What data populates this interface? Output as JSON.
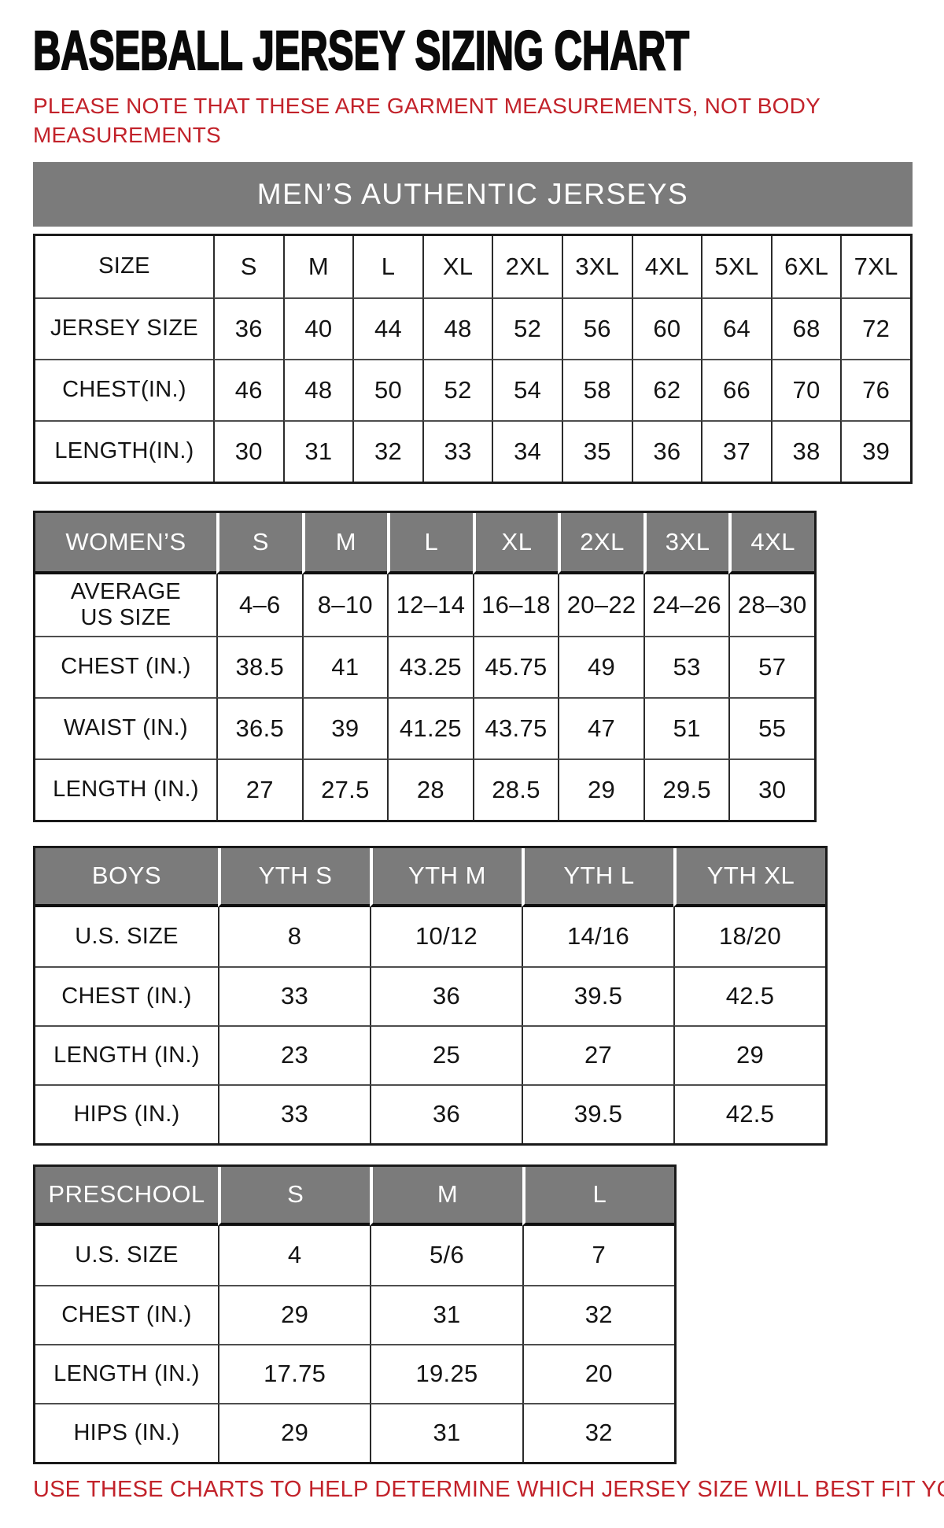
{
  "page": {
    "title": "BASEBALL JERSEY SIZING CHART",
    "note": "PLEASE NOTE THAT THESE ARE GARMENT MEASUREMENTS, NOT BODY MEASUREMENTS",
    "footer": "USE THESE CHARTS TO HELP DETERMINE WHICH JERSEY SIZE WILL BEST FIT YOU."
  },
  "colors": {
    "header_gray": "#7b7b7b",
    "note_red": "#c2222a",
    "border_dark": "#1a1a1a",
    "header_text": "#ffffff",
    "body_text": "#141414"
  },
  "tables": [
    {
      "name": "mens",
      "banner": "MEN’S AUTHENTIC JERSEYS",
      "rows": [
        {
          "label": "SIZE",
          "cells": [
            "S",
            "M",
            "L",
            "XL",
            "2XL",
            "3XL",
            "4XL",
            "5XL",
            "6XL",
            "7XL"
          ]
        },
        {
          "label": "JERSEY SIZE",
          "cells": [
            "36",
            "40",
            "44",
            "48",
            "52",
            "56",
            "60",
            "64",
            "68",
            "72"
          ]
        },
        {
          "label": "CHEST(IN.)",
          "cells": [
            "46",
            "48",
            "50",
            "52",
            "54",
            "58",
            "62",
            "66",
            "70",
            "76"
          ]
        },
        {
          "label": "LENGTH(IN.)",
          "cells": [
            "30",
            "31",
            "32",
            "33",
            "34",
            "35",
            "36",
            "37",
            "38",
            "39"
          ]
        }
      ]
    },
    {
      "name": "womens",
      "header": {
        "label": "WOMEN’S",
        "cells": [
          "S",
          "M",
          "L",
          "XL",
          "2XL",
          "3XL",
          "4XL"
        ]
      },
      "rows": [
        {
          "label": "AVERAGE\nUS SIZE",
          "cells": [
            "4–6",
            "8–10",
            "12–14",
            "16–18",
            "20–22",
            "24–26",
            "28–30"
          ]
        },
        {
          "label": "CHEST (IN.)",
          "cells": [
            "38.5",
            "41",
            "43.25",
            "45.75",
            "49",
            "53",
            "57"
          ]
        },
        {
          "label": "WAIST (IN.)",
          "cells": [
            "36.5",
            "39",
            "41.25",
            "43.75",
            "47",
            "51",
            "55"
          ]
        },
        {
          "label": "LENGTH (IN.)",
          "cells": [
            "27",
            "27.5",
            "28",
            "28.5",
            "29",
            "29.5",
            "30"
          ]
        }
      ]
    },
    {
      "name": "boys",
      "header": {
        "label": "BOYS",
        "cells": [
          "YTH S",
          "YTH M",
          "YTH L",
          "YTH XL"
        ]
      },
      "rows": [
        {
          "label": "U.S. SIZE",
          "cells": [
            "8",
            "10/12",
            "14/16",
            "18/20"
          ]
        },
        {
          "label": "CHEST (IN.)",
          "cells": [
            "33",
            "36",
            "39.5",
            "42.5"
          ]
        },
        {
          "label": "LENGTH (IN.)",
          "cells": [
            "23",
            "25",
            "27",
            "29"
          ]
        },
        {
          "label": "HIPS (IN.)",
          "cells": [
            "33",
            "36",
            "39.5",
            "42.5"
          ]
        }
      ]
    },
    {
      "name": "preschool",
      "header": {
        "label": "PRESCHOOL",
        "cells": [
          "S",
          "M",
          "L"
        ]
      },
      "rows": [
        {
          "label": "U.S. SIZE",
          "cells": [
            "4",
            "5/6",
            "7"
          ]
        },
        {
          "label": "CHEST (IN.)",
          "cells": [
            "29",
            "31",
            "32"
          ]
        },
        {
          "label": "LENGTH (IN.)",
          "cells": [
            "17.75",
            "19.25",
            "20"
          ]
        },
        {
          "label": "HIPS (IN.)",
          "cells": [
            "29",
            "31",
            "32"
          ]
        }
      ]
    }
  ]
}
